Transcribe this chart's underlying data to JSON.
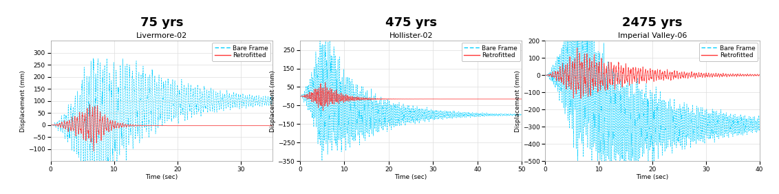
{
  "panels": [
    {
      "super_title": "75 yrs",
      "chart_title": "Livermore-02",
      "xlabel": "Time (sec)",
      "ylabel": "Displacement (mm)",
      "xlim": [
        0,
        35
      ],
      "ylim": [
        -150,
        350
      ],
      "yticks": [
        -100,
        -50,
        0,
        50,
        100,
        150,
        200,
        250,
        300
      ],
      "xticks": [
        0,
        10,
        20,
        30
      ],
      "duration": 35,
      "dt": 0.02,
      "bare_seed": 10,
      "bare_params": {
        "peak_time": 7.0,
        "peak_amp": 340,
        "freq": 2.8,
        "decay_quake": 0.1,
        "settle": 100,
        "settle_time": 9,
        "sign": 1,
        "noise_scale": 0.4
      },
      "retro_seed": 20,
      "retro_params": {
        "peak_time": 7.0,
        "peak_amp": 110,
        "freq": 2.5,
        "decay_quake": 0.55,
        "settle": -3,
        "settle_time": 9,
        "sign": -1,
        "noise_scale": 0.3
      }
    },
    {
      "super_title": "475 yrs",
      "chart_title": "Hollister-02",
      "xlabel": "Time (sec)",
      "ylabel": "Displacement (mm)",
      "xlim": [
        0,
        50
      ],
      "ylim": [
        -350,
        300
      ],
      "yticks": [
        -350,
        -250,
        -150,
        -50,
        50,
        150,
        250
      ],
      "xticks": [
        0,
        10,
        20,
        30,
        40,
        50
      ],
      "duration": 50,
      "dt": 0.02,
      "bare_seed": 30,
      "bare_params": {
        "peak_time": 5,
        "peak_amp": 370,
        "freq": 3.2,
        "decay_quake": 0.1,
        "settle": -100,
        "settle_time": 7,
        "sign": -1,
        "noise_scale": 0.45
      },
      "retro_seed": 40,
      "retro_params": {
        "peak_time": 5,
        "peak_amp": 80,
        "freq": 2.8,
        "decay_quake": 0.25,
        "settle": -15,
        "settle_time": 7,
        "sign": 1,
        "noise_scale": 0.35
      }
    },
    {
      "super_title": "2475 yrs",
      "chart_title": "Imperial Valley-06",
      "xlabel": "Time (sec)",
      "ylabel": "Displacement (mm)",
      "xlim": [
        0,
        40
      ],
      "ylim": [
        -500,
        200
      ],
      "yticks": [
        -500,
        -400,
        -300,
        -200,
        -100,
        0,
        100,
        200
      ],
      "xticks": [
        0,
        10,
        20,
        30,
        40
      ],
      "duration": 40,
      "dt": 0.02,
      "bare_seed": 50,
      "bare_params": {
        "peak_time": 6,
        "peak_amp": 530,
        "freq": 3.8,
        "decay_quake": 0.07,
        "settle": -290,
        "settle_time": 8,
        "sign": -1,
        "noise_scale": 0.5
      },
      "retro_seed": 60,
      "retro_params": {
        "peak_time": 6,
        "peak_amp": 160,
        "freq": 2.2,
        "decay_quake": 0.1,
        "settle": 0,
        "settle_time": 8,
        "sign": 1,
        "noise_scale": 0.4
      }
    }
  ],
  "bare_color": "#00CFFF",
  "retro_color": "#FF3333",
  "grid_color": "#DDDDDD",
  "super_title_fontsize": 13,
  "chart_title_fontsize": 8,
  "axis_label_fontsize": 6.5,
  "tick_fontsize": 6.5,
  "legend_fontsize": 6.5
}
